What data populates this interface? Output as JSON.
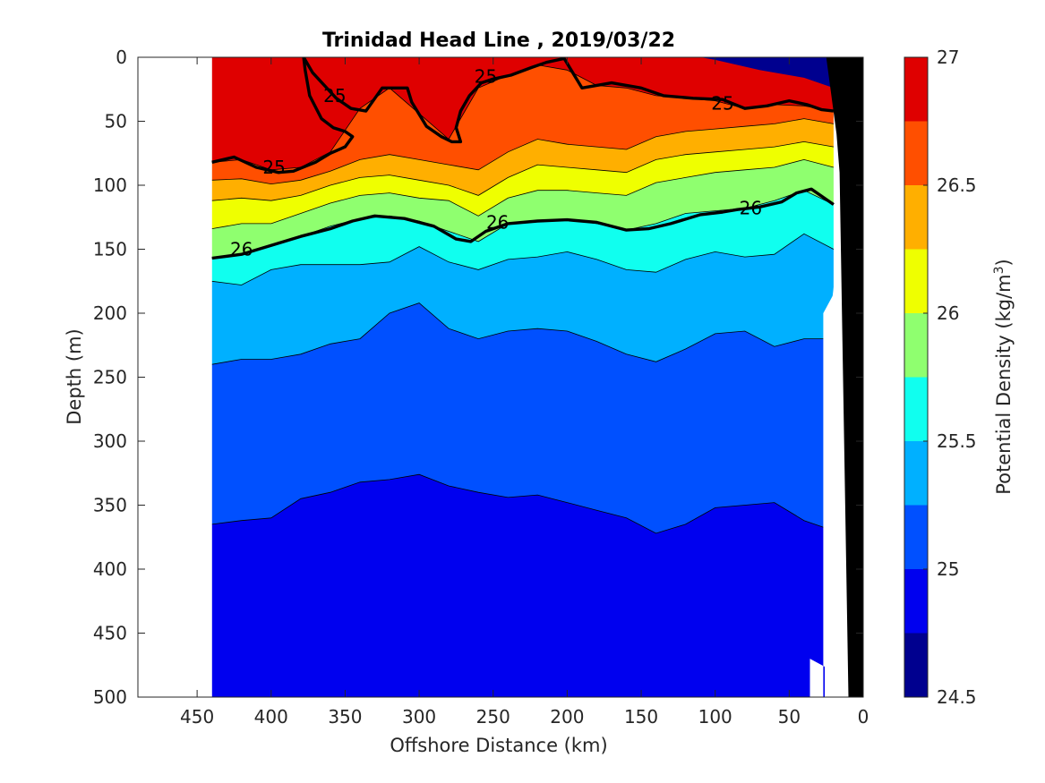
{
  "chart_data": {
    "type": "contourf",
    "title": "Trinidad Head Line , 2019/03/22",
    "xlabel": "Offshore Distance (km)",
    "ylabel": "Depth (m)",
    "colorbar_label": "Potential Density (kg/m³)",
    "colorbar_label_main": "Potential Density (kg/m",
    "colorbar_label_sup": "3",
    "colorbar_label_close": ")",
    "xlim": [
      490,
      0
    ],
    "x_reversed": true,
    "ylim": [
      0,
      500
    ],
    "y_reversed": true,
    "xticks": [
      450,
      400,
      350,
      300,
      250,
      200,
      150,
      100,
      50,
      0
    ],
    "yticks": [
      0,
      50,
      100,
      150,
      200,
      250,
      300,
      350,
      400,
      450,
      500
    ],
    "data_x_range": [
      440,
      0
    ],
    "contour_levels": [
      24.5,
      24.75,
      25.0,
      25.25,
      25.5,
      25.75,
      26.0,
      26.25,
      26.5,
      26.75,
      27.0
    ],
    "level_colors": [
      "#00008f",
      "#0000ef",
      "#0050ff",
      "#00b0ff",
      "#10ffef",
      "#8fff6f",
      "#efff00",
      "#ffaf00",
      "#ff4f00",
      "#df0000"
    ],
    "colorbar_ticks": [
      24.5,
      25,
      25.5,
      26,
      26.5,
      27
    ],
    "colorbar_tick_labels": [
      "24.5",
      "25",
      "25.5",
      "26",
      "26.5",
      "27"
    ],
    "bathymetry_color": "#000000",
    "isopycnals": [
      {
        "level": 25.0,
        "label": "25",
        "x": [
          440,
          425,
          410,
          395,
          385,
          370,
          360,
          350,
          345,
          350,
          358,
          366,
          374,
          377,
          378
        ],
        "y": [
          82,
          78,
          86,
          90,
          89,
          82,
          75,
          70,
          62,
          58,
          55,
          48,
          30,
          10,
          0
        ]
      },
      {
        "level": 25.0,
        "label": "25",
        "x": [
          378,
          372,
          364,
          356,
          346,
          336,
          325,
          308,
          305,
          295,
          285,
          278,
          272,
          275,
          272,
          266,
          258,
          250,
          238,
          224,
          214,
          202,
          190,
          170,
          150,
          135,
          115,
          95,
          80,
          65,
          50,
          38,
          28,
          20
        ],
        "y": [
          0,
          12,
          22,
          32,
          40,
          42,
          24,
          24,
          35,
          54,
          62,
          66,
          66,
          55,
          42,
          30,
          20,
          17,
          14,
          8,
          4,
          1,
          24,
          20,
          24,
          30,
          32,
          33,
          40,
          38,
          34,
          37,
          41,
          42
        ]
      },
      {
        "level": 26.0,
        "label": "26",
        "x": [
          440,
          420,
          400,
          380,
          360,
          345,
          330,
          310,
          290,
          275,
          265,
          255,
          240,
          220,
          200,
          180,
          160,
          145,
          130,
          110,
          95,
          85,
          70,
          55,
          45,
          35,
          20
        ],
        "y": [
          157,
          154,
          147,
          140,
          134,
          128,
          124,
          126,
          132,
          142,
          144,
          136,
          130,
          128,
          127,
          129,
          135,
          134,
          130,
          123,
          121,
          119,
          117,
          113,
          106,
          103,
          115
        ]
      }
    ],
    "isopycnal_labels": [
      {
        "text": "25",
        "x": 255,
        "y": 15
      },
      {
        "text": "25",
        "x": 357,
        "y": 30
      },
      {
        "text": "25",
        "x": 95,
        "y": 36
      },
      {
        "text": "25",
        "x": 398,
        "y": 86
      },
      {
        "text": "26",
        "x": 76,
        "y": 118
      },
      {
        "text": "26",
        "x": 247,
        "y": 129
      },
      {
        "text": "26",
        "x": 420,
        "y": 150
      }
    ]
  }
}
